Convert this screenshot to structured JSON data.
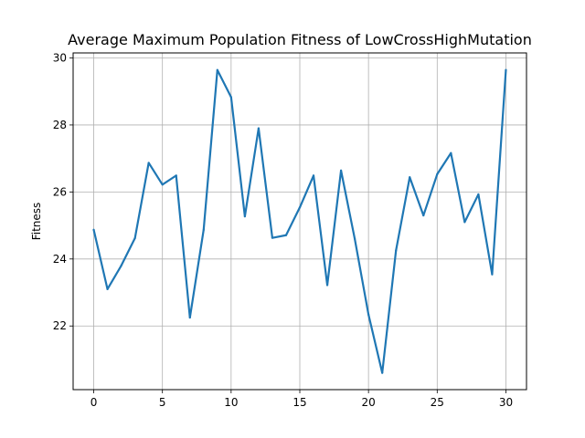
{
  "chart_data": {
    "type": "line",
    "title": "Average Maximum Population Fitness of LowCrossHighMutation",
    "xlabel": "",
    "ylabel": "Fitness",
    "xlim": [
      -1.5,
      31.5
    ],
    "ylim": [
      20.1,
      30.15
    ],
    "grid": true,
    "x_ticks": [
      0,
      5,
      10,
      15,
      20,
      25,
      30
    ],
    "y_ticks": [
      22,
      24,
      26,
      28,
      30
    ],
    "series": [
      {
        "color": "#1f77b4",
        "x": [
          0,
          1,
          2,
          3,
          4,
          5,
          6,
          7,
          8,
          9,
          10,
          11,
          12,
          13,
          14,
          15,
          16,
          17,
          18,
          19,
          20,
          21,
          22,
          23,
          24,
          25,
          26,
          27,
          28,
          29,
          30
        ],
        "y": [
          24.87,
          23.1,
          23.8,
          24.62,
          26.87,
          26.22,
          26.49,
          22.25,
          24.87,
          29.64,
          28.83,
          25.27,
          27.9,
          24.63,
          24.71,
          25.54,
          26.49,
          23.22,
          26.64,
          24.6,
          22.34,
          20.6,
          24.25,
          26.44,
          25.3,
          26.53,
          27.16,
          25.1,
          25.93,
          23.54,
          29.64
        ]
      }
    ]
  }
}
